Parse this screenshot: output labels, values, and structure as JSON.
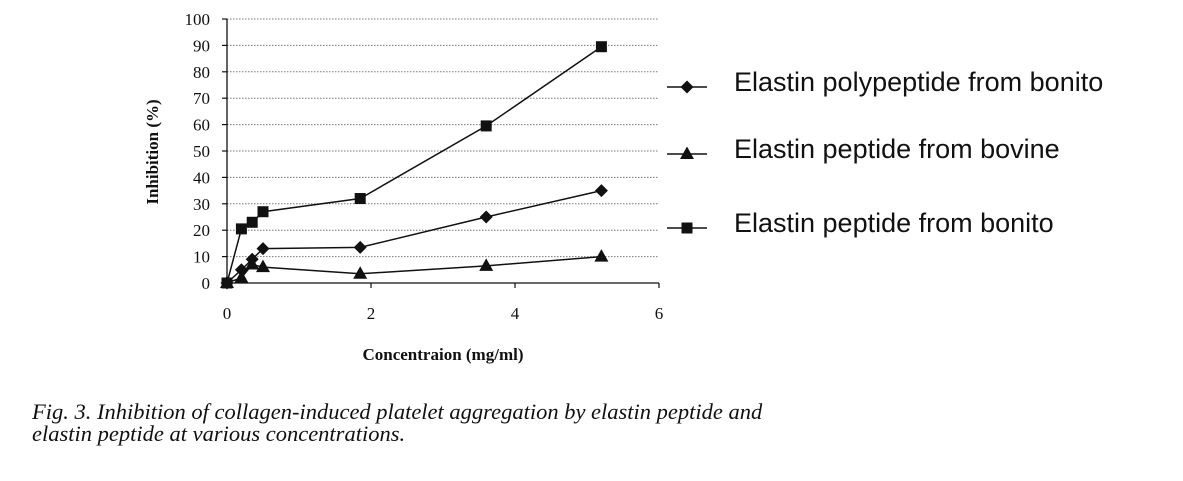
{
  "chart_data": {
    "type": "line",
    "title": "",
    "xlabel": "Concentraion (mg/ml)",
    "ylabel": "Inhibition (%)",
    "xlim": [
      0,
      6
    ],
    "ylim": [
      0,
      100
    ],
    "x_ticks": [
      "0",
      "2",
      "4",
      "6"
    ],
    "y_ticks": [
      "0",
      "10",
      "20",
      "30",
      "40",
      "50",
      "60",
      "70",
      "80",
      "90",
      "100"
    ],
    "grid": "horizontal dotted",
    "legend_position": "right",
    "series": [
      {
        "name": "Elastin polypeptide from bonito",
        "marker": "diamond",
        "x": [
          0,
          0.2,
          0.35,
          0.5,
          1.85,
          3.6,
          5.2
        ],
        "y": [
          0,
          5,
          9,
          13,
          13.5,
          25,
          35
        ]
      },
      {
        "name": "Elastin peptide from bovine",
        "marker": "triangle",
        "x": [
          0,
          0.2,
          0.35,
          0.5,
          1.85,
          3.6,
          5.2
        ],
        "y": [
          0,
          2,
          7,
          6,
          3.5,
          6.5,
          10
        ]
      },
      {
        "name": "Elastin peptide from bonito",
        "marker": "square",
        "x": [
          0,
          0.2,
          0.35,
          0.5,
          1.85,
          3.6,
          5.2
        ],
        "y": [
          0,
          20.5,
          23,
          27,
          32,
          59.5,
          89.5
        ]
      }
    ]
  },
  "caption": {
    "line1": "Fig. 3. Inhibition of collagen-induced platelet aggregation by elastin peptide and",
    "line2": "elastin peptide at various concentrations."
  },
  "colors": {
    "line": "#111111",
    "grid": "#777777",
    "text": "#111111"
  }
}
